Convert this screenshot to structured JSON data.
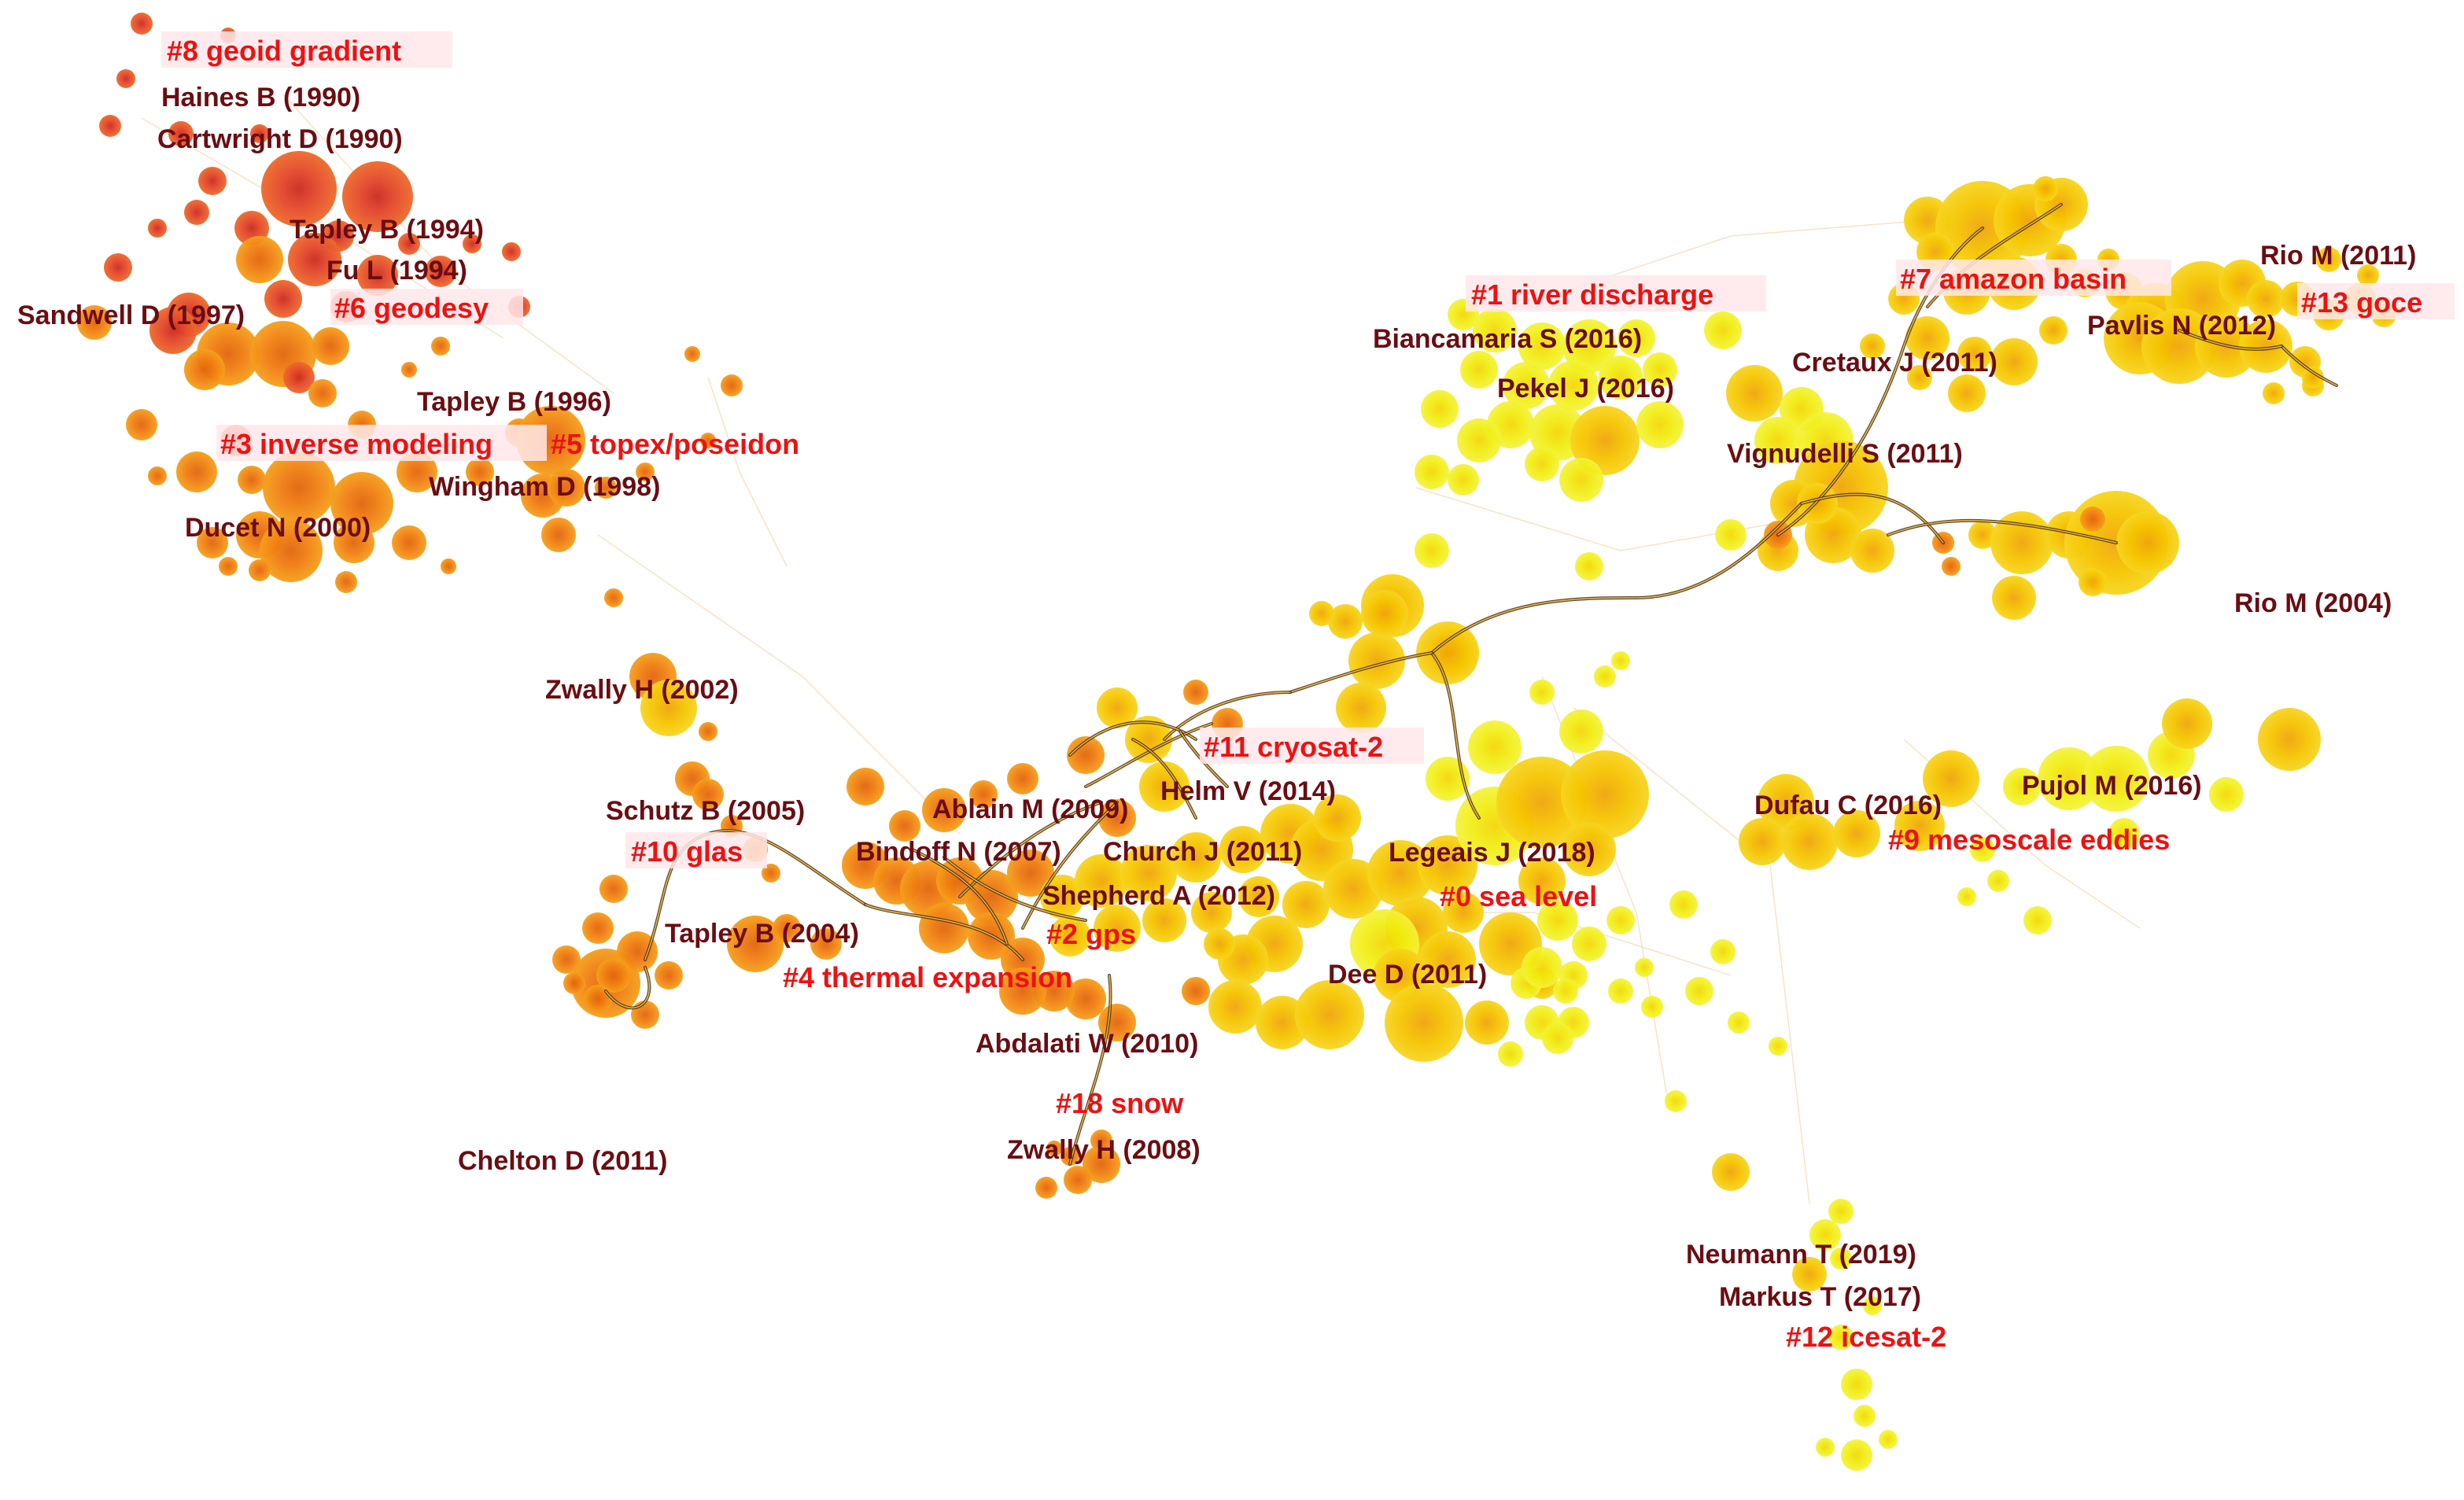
{
  "colors": {
    "background": "#ffffff",
    "cluster_label": "#ee1111",
    "author_label": "#6b0d12",
    "old_node": "#e2452a",
    "mid_node": "#f07d12",
    "recent_node": "#f5c400",
    "newest_node": "#f1ee10",
    "edge": "#4a2b08"
  },
  "clusters": [
    {
      "id": "c8",
      "text": "#8 geoid gradient"
    },
    {
      "id": "c6",
      "text": "#6 geodesy"
    },
    {
      "id": "c3",
      "text": "#3 inverse modeling"
    },
    {
      "id": "c5",
      "text": "#5 topex/poseidon"
    },
    {
      "id": "c10",
      "text": "#10 glas"
    },
    {
      "id": "c11",
      "text": "#11 cryosat-2"
    },
    {
      "id": "c2",
      "text": "#2 gps"
    },
    {
      "id": "c4",
      "text": "#4 thermal expansion"
    },
    {
      "id": "c18",
      "text": "#18 snow"
    },
    {
      "id": "c0",
      "text": "#0 sea level"
    },
    {
      "id": "c1",
      "text": "#1 river discharge"
    },
    {
      "id": "c7",
      "text": "#7 amazon basin"
    },
    {
      "id": "c13",
      "text": "#13 goce"
    },
    {
      "id": "c9",
      "text": "#9 mesoscale eddies"
    },
    {
      "id": "c12",
      "text": "#12 icesat-2"
    }
  ],
  "authors": [
    {
      "id": "a1",
      "text": "Haines B (1990)"
    },
    {
      "id": "a2",
      "text": "Cartwright D (1990)"
    },
    {
      "id": "a3",
      "text": "Tapley B (1994)"
    },
    {
      "id": "a4",
      "text": "Fu L (1994)"
    },
    {
      "id": "a5",
      "text": "Sandwell D (1997)"
    },
    {
      "id": "a6",
      "text": "Tapley B (1996)"
    },
    {
      "id": "a7",
      "text": "Wingham D (1998)"
    },
    {
      "id": "a8",
      "text": "Ducet N (2000)"
    },
    {
      "id": "a9",
      "text": "Zwally H (2002)"
    },
    {
      "id": "a10",
      "text": "Schutz B (2005)"
    },
    {
      "id": "a11",
      "text": "Ablain M (2009)"
    },
    {
      "id": "a12",
      "text": "Helm V (2014)"
    },
    {
      "id": "a13",
      "text": "Bindoff N (2007)"
    },
    {
      "id": "a14",
      "text": "Church J (2011)"
    },
    {
      "id": "a15",
      "text": "Shepherd A (2012)"
    },
    {
      "id": "a16",
      "text": "Tapley B (2004)"
    },
    {
      "id": "a17",
      "text": "Legeais J (2018)"
    },
    {
      "id": "a18",
      "text": "Dee D (2011)"
    },
    {
      "id": "a19",
      "text": "Abdalati W (2010)"
    },
    {
      "id": "a20",
      "text": "Zwally H (2008)"
    },
    {
      "id": "a21",
      "text": "Chelton D (2011)"
    },
    {
      "id": "a22",
      "text": "Biancamaria S (2016)"
    },
    {
      "id": "a23",
      "text": "Pekel J (2016)"
    },
    {
      "id": "a24",
      "text": "Cretaux J (2011)"
    },
    {
      "id": "a25",
      "text": "Vignudelli S (2011)"
    },
    {
      "id": "a26",
      "text": "Rio M (2011)"
    },
    {
      "id": "a27",
      "text": "Pavlis N (2012)"
    },
    {
      "id": "a28",
      "text": "Rio M (2004)"
    },
    {
      "id": "a29",
      "text": "Dufau C (2016)"
    },
    {
      "id": "a30",
      "text": "Pujol M (2016)"
    },
    {
      "id": "a31",
      "text": "Neumann T (2019)"
    },
    {
      "id": "a32",
      "text": "Markus T (2017)"
    }
  ]
}
